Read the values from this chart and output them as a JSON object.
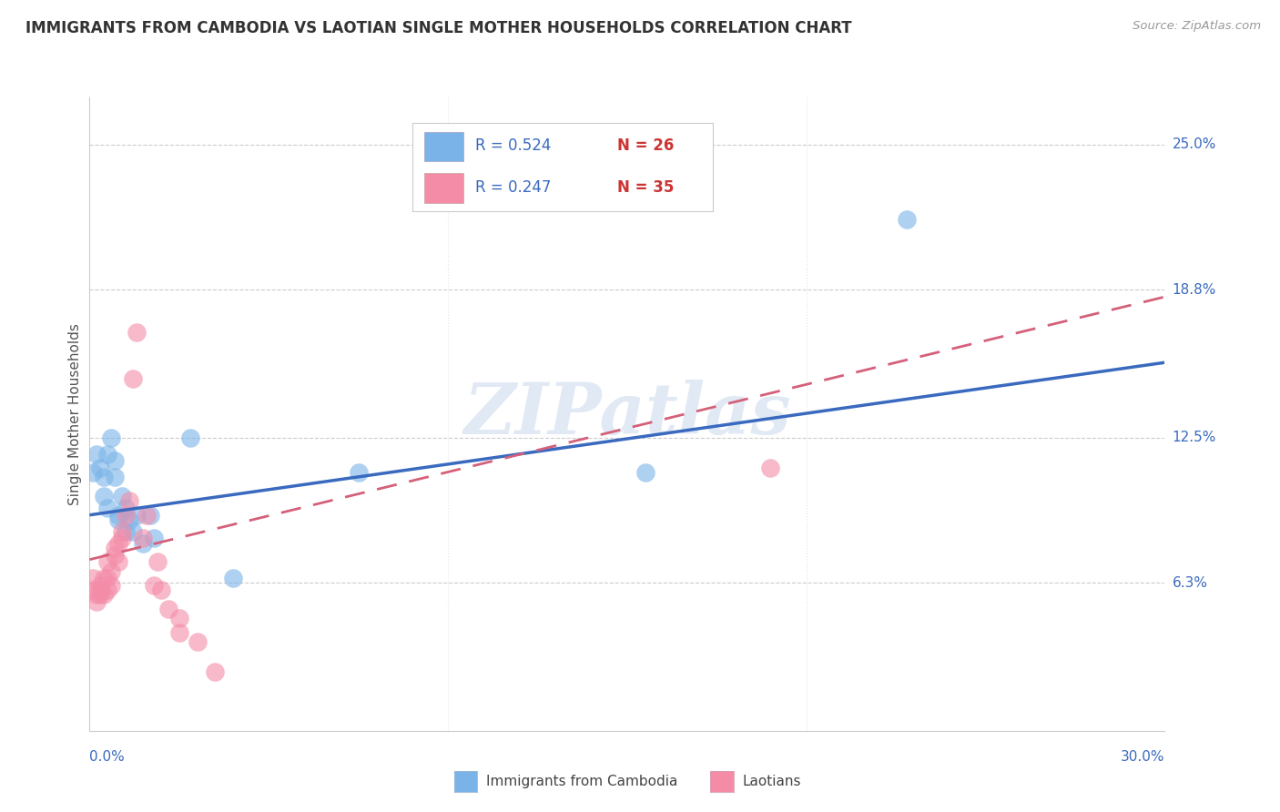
{
  "title": "IMMIGRANTS FROM CAMBODIA VS LAOTIAN SINGLE MOTHER HOUSEHOLDS CORRELATION CHART",
  "source": "Source: ZipAtlas.com",
  "ylabel": "Single Mother Households",
  "ytick_labels": [
    "6.3%",
    "12.5%",
    "18.8%",
    "25.0%"
  ],
  "ytick_values": [
    0.063,
    0.125,
    0.188,
    0.25
  ],
  "xlim": [
    0.0,
    0.3
  ],
  "ylim": [
    0.0,
    0.27
  ],
  "legend_color1": "#7ab3e8",
  "legend_color2": "#f48ca8",
  "watermark": "ZIPatlas",
  "cambodia_color": "#7ab3e8",
  "laotian_color": "#f48ca8",
  "cambodia_scatter": [
    [
      0.001,
      0.11
    ],
    [
      0.002,
      0.118
    ],
    [
      0.003,
      0.112
    ],
    [
      0.004,
      0.108
    ],
    [
      0.004,
      0.1
    ],
    [
      0.005,
      0.118
    ],
    [
      0.005,
      0.095
    ],
    [
      0.006,
      0.125
    ],
    [
      0.007,
      0.108
    ],
    [
      0.007,
      0.115
    ],
    [
      0.008,
      0.092
    ],
    [
      0.008,
      0.09
    ],
    [
      0.009,
      0.1
    ],
    [
      0.01,
      0.085
    ],
    [
      0.01,
      0.095
    ],
    [
      0.011,
      0.09
    ],
    [
      0.012,
      0.085
    ],
    [
      0.013,
      0.092
    ],
    [
      0.015,
      0.08
    ],
    [
      0.017,
      0.092
    ],
    [
      0.018,
      0.082
    ],
    [
      0.028,
      0.125
    ],
    [
      0.04,
      0.065
    ],
    [
      0.075,
      0.11
    ],
    [
      0.155,
      0.11
    ],
    [
      0.228,
      0.218
    ]
  ],
  "laotian_scatter": [
    [
      0.001,
      0.065
    ],
    [
      0.001,
      0.06
    ],
    [
      0.002,
      0.058
    ],
    [
      0.002,
      0.055
    ],
    [
      0.003,
      0.062
    ],
    [
      0.003,
      0.058
    ],
    [
      0.003,
      0.06
    ],
    [
      0.004,
      0.065
    ],
    [
      0.004,
      0.058
    ],
    [
      0.005,
      0.06
    ],
    [
      0.005,
      0.065
    ],
    [
      0.005,
      0.072
    ],
    [
      0.006,
      0.062
    ],
    [
      0.006,
      0.068
    ],
    [
      0.007,
      0.075
    ],
    [
      0.007,
      0.078
    ],
    [
      0.008,
      0.072
    ],
    [
      0.008,
      0.08
    ],
    [
      0.009,
      0.082
    ],
    [
      0.009,
      0.085
    ],
    [
      0.01,
      0.092
    ],
    [
      0.011,
      0.098
    ],
    [
      0.012,
      0.15
    ],
    [
      0.013,
      0.17
    ],
    [
      0.015,
      0.082
    ],
    [
      0.016,
      0.092
    ],
    [
      0.018,
      0.062
    ],
    [
      0.019,
      0.072
    ],
    [
      0.02,
      0.06
    ],
    [
      0.022,
      0.052
    ],
    [
      0.025,
      0.048
    ],
    [
      0.025,
      0.042
    ],
    [
      0.03,
      0.038
    ],
    [
      0.035,
      0.025
    ],
    [
      0.19,
      0.112
    ]
  ],
  "cambodia_line": {
    "x0": 0.0,
    "y0": 0.092,
    "x1": 0.3,
    "y1": 0.157
  },
  "laotian_line": {
    "x0": 0.0,
    "y0": 0.073,
    "x1": 0.3,
    "y1": 0.185
  },
  "cambodia_line_color": "#3a6abf",
  "laotian_line_color": "#d4607a",
  "legend1_r": "R = 0.524",
  "legend1_n": "N = 26",
  "legend2_r": "R = 0.247",
  "legend2_n": "N = 35",
  "text_r_color": "#3a6abf",
  "text_n_color": "#cc3333",
  "bottom_label1": "Immigrants from Cambodia",
  "bottom_label2": "Laotians"
}
